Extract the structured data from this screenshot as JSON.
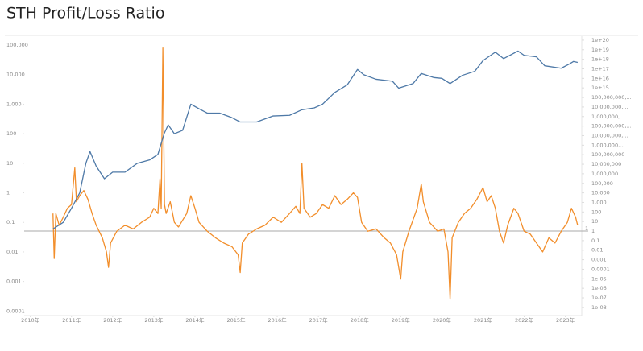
{
  "chart_data": {
    "type": "line",
    "title": "STH  Profit/Loss Ratio",
    "xlim": [
      2009.85,
      2023.4
    ],
    "xticks": [
      {
        "value": 2010,
        "label": "2010年"
      },
      {
        "value": 2011,
        "label": "2011年"
      },
      {
        "value": 2012,
        "label": "2012年"
      },
      {
        "value": 2013,
        "label": "2013年"
      },
      {
        "value": 2014,
        "label": "2014年"
      },
      {
        "value": 2015,
        "label": "2015年"
      },
      {
        "value": 2016,
        "label": "2016年"
      },
      {
        "value": 2017,
        "label": "2017年"
      },
      {
        "value": 2018,
        "label": "2018年"
      },
      {
        "value": 2019,
        "label": "2019年"
      },
      {
        "value": 2020,
        "label": "2020年"
      },
      {
        "value": 2021,
        "label": "2021年"
      },
      {
        "value": 2022,
        "label": "2022年"
      },
      {
        "value": 2023,
        "label": "2023年"
      }
    ],
    "ylim": [
      7e-05,
      200000
    ],
    "log_y": true,
    "yticks": [
      0.0001,
      0.001,
      0.01,
      0.1,
      1,
      10,
      100,
      {
        "value": 1000,
        "label": "1,000"
      },
      {
        "value": 10000,
        "label": "10,000"
      },
      {
        "value": 100000,
        "label": "100,000"
      }
    ],
    "y2lim": [
      1.4e-09,
      2.6e+20
    ],
    "log_y2": true,
    "y2ticks": [
      {
        "value": 1e-08,
        "label": "1e-08"
      },
      {
        "value": 1e-07,
        "label": "1e-07"
      },
      {
        "value": 1e-06,
        "label": "1e-06"
      },
      {
        "value": 1e-05,
        "label": "1e-05"
      },
      {
        "value": 0.0001,
        "label": "0.0001"
      },
      {
        "value": 0.001,
        "label": "0.001"
      },
      {
        "value": 0.01,
        "label": "0.01"
      },
      {
        "value": 0.1,
        "label": "0.1"
      },
      {
        "value": 1,
        "label": "1"
      },
      {
        "value": 10,
        "label": "10"
      },
      {
        "value": 100,
        "label": "100"
      },
      {
        "value": 1000,
        "label": "1,000"
      },
      {
        "value": 10000,
        "label": "10,000"
      },
      {
        "value": 100000,
        "label": "100,000"
      },
      {
        "value": 1000000,
        "label": "1,000,000"
      },
      {
        "value": 10000000,
        "label": "10,000,000"
      },
      {
        "value": 100000000,
        "label": "100,000,000"
      },
      {
        "value": 1000000000.0,
        "label": "1,000,000,..."
      },
      {
        "value": 10000000000.0,
        "label": "10,000,000,..."
      },
      {
        "value": 100000000000.0,
        "label": "100,000,000,..."
      },
      {
        "value": 1000000000000.0,
        "label": "1,000,000,..."
      },
      {
        "value": 10000000000000.0,
        "label": "10,000,000,..."
      },
      {
        "value": 100000000000000.0,
        "label": "100,000,000,..."
      },
      {
        "value": 1000000000000000.0,
        "label": "1e+15"
      },
      {
        "value": 1e+16,
        "label": "1e+16"
      },
      {
        "value": 1e+17,
        "label": "1e+17"
      },
      {
        "value": 1e+18,
        "label": "1e+18"
      },
      {
        "value": 1e+19,
        "label": "1e+19"
      },
      {
        "value": 1e+20,
        "label": "1e+20"
      }
    ],
    "reference_line": {
      "axis": "y2",
      "value": 1,
      "label": "1",
      "color": "#aaaaaa"
    },
    "series": [
      {
        "color": "#4e79a7",
        "axis": "y",
        "x": [
          2010.55,
          2010.8,
          2011.0,
          2011.2,
          2011.35,
          2011.45,
          2011.6,
          2011.8,
          2012.0,
          2012.3,
          2012.6,
          2012.9,
          2013.1,
          2013.25,
          2013.35,
          2013.5,
          2013.7,
          2013.9,
          2014.1,
          2014.3,
          2014.6,
          2014.9,
          2015.1,
          2015.5,
          2015.9,
          2016.3,
          2016.6,
          2016.9,
          2017.1,
          2017.4,
          2017.7,
          2017.95,
          2018.1,
          2018.4,
          2018.8,
          2018.95,
          2019.3,
          2019.5,
          2019.8,
          2020.0,
          2020.2,
          2020.5,
          2020.8,
          2021.0,
          2021.3,
          2021.5,
          2021.85,
          2022.0,
          2022.3,
          2022.5,
          2022.9,
          2023.1,
          2023.2,
          2023.3
        ],
        "values": [
          0.06,
          0.1,
          0.3,
          1,
          10,
          25,
          8,
          3,
          5,
          5,
          10,
          13,
          20,
          100,
          200,
          100,
          130,
          1000,
          700,
          500,
          500,
          350,
          250,
          250,
          400,
          420,
          650,
          750,
          1000,
          2500,
          4500,
          15000,
          10000,
          7000,
          6000,
          3500,
          5000,
          11000,
          8000,
          7500,
          5000,
          9500,
          13000,
          30000,
          58000,
          35000,
          63000,
          45000,
          40000,
          20000,
          16500,
          23000,
          28000,
          26000
        ]
      },
      {
        "color": "#f28e2b",
        "axis": "y",
        "x": [
          2010.55,
          2010.58,
          2010.62,
          2010.7,
          2010.8,
          2010.9,
          2011.0,
          2011.08,
          2011.12,
          2011.2,
          2011.3,
          2011.4,
          2011.5,
          2011.6,
          2011.75,
          2011.85,
          2011.9,
          2011.95,
          2012.1,
          2012.3,
          2012.5,
          2012.7,
          2012.9,
          2013.0,
          2013.1,
          2013.15,
          2013.18,
          2013.22,
          2013.26,
          2013.3,
          2013.4,
          2013.5,
          2013.6,
          2013.8,
          2013.9,
          2014.0,
          2014.1,
          2014.3,
          2014.5,
          2014.7,
          2014.9,
          2015.05,
          2015.1,
          2015.15,
          2015.3,
          2015.5,
          2015.7,
          2015.9,
          2016.1,
          2016.3,
          2016.45,
          2016.55,
          2016.6,
          2016.65,
          2016.8,
          2016.95,
          2017.1,
          2017.25,
          2017.4,
          2017.55,
          2017.7,
          2017.85,
          2017.95,
          2018.05,
          2018.2,
          2018.4,
          2018.6,
          2018.75,
          2018.9,
          2019.0,
          2019.05,
          2019.2,
          2019.4,
          2019.5,
          2019.55,
          2019.7,
          2019.9,
          2020.05,
          2020.15,
          2020.2,
          2020.25,
          2020.4,
          2020.55,
          2020.7,
          2020.85,
          2021.0,
          2021.1,
          2021.2,
          2021.3,
          2021.4,
          2021.5,
          2021.6,
          2021.75,
          2021.85,
          2022.0,
          2022.15,
          2022.3,
          2022.45,
          2022.6,
          2022.75,
          2022.9,
          2023.05,
          2023.15,
          2023.25,
          2023.3
        ],
        "values": [
          0.2,
          0.006,
          0.2,
          0.08,
          0.15,
          0.3,
          0.4,
          7,
          0.5,
          0.8,
          1.2,
          0.6,
          0.2,
          0.08,
          0.03,
          0.01,
          0.003,
          0.02,
          0.05,
          0.08,
          0.06,
          0.1,
          0.15,
          0.3,
          0.2,
          3,
          0.3,
          80000,
          0.4,
          0.2,
          0.5,
          0.1,
          0.07,
          0.2,
          0.8,
          0.3,
          0.1,
          0.05,
          0.03,
          0.02,
          0.015,
          0.008,
          0.002,
          0.02,
          0.04,
          0.06,
          0.08,
          0.15,
          0.1,
          0.2,
          0.35,
          0.2,
          10,
          0.3,
          0.15,
          0.2,
          0.4,
          0.3,
          0.8,
          0.4,
          0.6,
          1,
          0.7,
          0.1,
          0.05,
          0.06,
          0.03,
          0.02,
          0.008,
          0.0012,
          0.01,
          0.05,
          0.3,
          2,
          0.5,
          0.1,
          0.05,
          0.06,
          0.01,
          0.00025,
          0.03,
          0.1,
          0.2,
          0.3,
          0.6,
          1.5,
          0.5,
          0.8,
          0.3,
          0.05,
          0.02,
          0.08,
          0.3,
          0.2,
          0.05,
          0.04,
          0.02,
          0.01,
          0.03,
          0.02,
          0.05,
          0.1,
          0.3,
          0.15,
          0.08
        ]
      }
    ]
  }
}
